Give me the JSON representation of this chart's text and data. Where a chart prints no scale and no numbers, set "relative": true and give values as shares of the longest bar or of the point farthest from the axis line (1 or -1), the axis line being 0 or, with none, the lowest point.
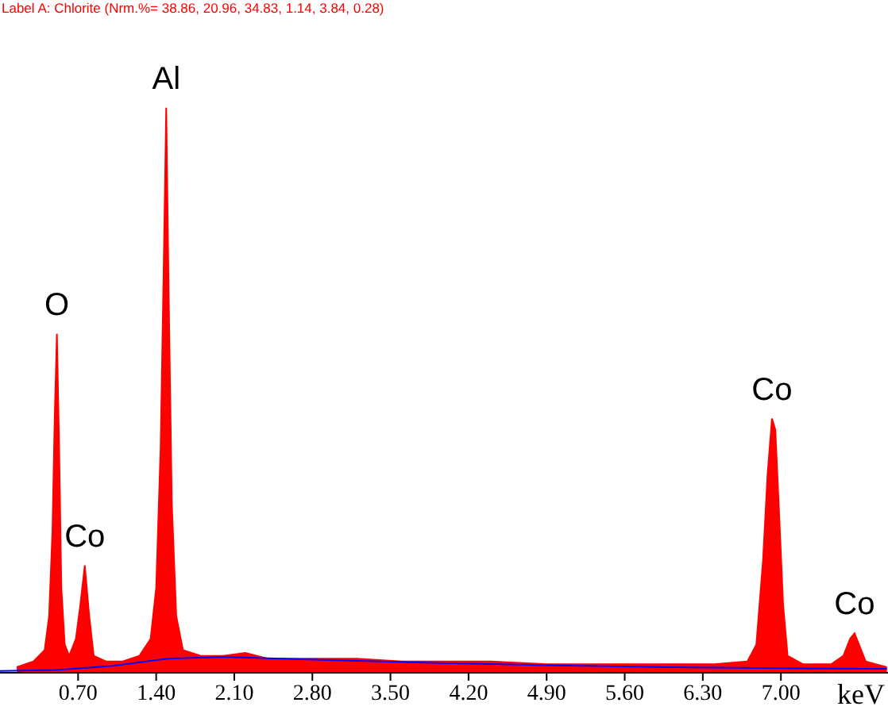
{
  "chart_data": {
    "type": "area",
    "title": "Label A: Chlorite (Nrm.%= 38.86, 20.96, 34.83, 1.14, 3.84, 0.28)",
    "xlabel": "keV",
    "relative": true,
    "xlim": [
      0,
      7.96
    ],
    "xticks": [
      {
        "value": 0.7,
        "label": "0.70"
      },
      {
        "value": 1.4,
        "label": "1.40"
      },
      {
        "value": 2.1,
        "label": "2.10"
      },
      {
        "value": 2.8,
        "label": "2.80"
      },
      {
        "value": 3.5,
        "label": "3.50"
      },
      {
        "value": 4.2,
        "label": "4.20"
      },
      {
        "value": 4.9,
        "label": "4.90"
      },
      {
        "value": 5.6,
        "label": "5.60"
      },
      {
        "value": 6.3,
        "label": "6.30"
      },
      {
        "value": 7.0,
        "label": "7.00"
      }
    ],
    "series": [
      {
        "color": "#ff0000",
        "x": [
          0.15,
          0.3,
          0.4,
          0.44,
          0.47,
          0.49,
          0.51,
          0.53,
          0.55,
          0.58,
          0.62,
          0.68,
          0.72,
          0.76,
          0.8,
          0.84,
          0.95,
          1.1,
          1.25,
          1.35,
          1.4,
          1.44,
          1.47,
          1.49,
          1.51,
          1.54,
          1.58,
          1.64,
          1.8,
          2.0,
          2.2,
          2.4,
          2.8,
          3.2,
          3.6,
          4.0,
          4.4,
          4.9,
          5.4,
          5.9,
          6.4,
          6.7,
          6.78,
          6.84,
          6.88,
          6.92,
          6.95,
          6.98,
          7.02,
          7.06,
          7.2,
          7.45,
          7.56,
          7.62,
          7.66,
          7.7,
          7.76,
          7.85,
          7.95
        ],
        "values": [
          0.01,
          0.02,
          0.04,
          0.1,
          0.25,
          0.45,
          0.6,
          0.4,
          0.15,
          0.05,
          0.03,
          0.06,
          0.12,
          0.19,
          0.1,
          0.03,
          0.02,
          0.02,
          0.03,
          0.06,
          0.15,
          0.4,
          0.75,
          1.0,
          0.7,
          0.3,
          0.1,
          0.04,
          0.03,
          0.03,
          0.035,
          0.025,
          0.025,
          0.025,
          0.02,
          0.02,
          0.02,
          0.015,
          0.015,
          0.015,
          0.015,
          0.02,
          0.05,
          0.2,
          0.35,
          0.45,
          0.43,
          0.3,
          0.12,
          0.03,
          0.015,
          0.015,
          0.03,
          0.06,
          0.07,
          0.05,
          0.02,
          0.015,
          0.01
        ]
      },
      {
        "type": "line",
        "color": "#0000ff",
        "x": [
          0,
          0.5,
          1.0,
          1.5,
          2.0,
          3.0,
          4.0,
          5.0,
          6.0,
          7.0,
          7.95
        ],
        "values": [
          0.003,
          0.005,
          0.012,
          0.025,
          0.028,
          0.022,
          0.017,
          0.013,
          0.01,
          0.008,
          0.007
        ]
      }
    ],
    "annotations": [
      {
        "text": "O",
        "x": 0.51,
        "y": 0.6
      },
      {
        "text": "Co",
        "x": 0.76,
        "y": 0.19
      },
      {
        "text": "Al",
        "x": 1.49,
        "y": 1.0
      },
      {
        "text": "Co",
        "x": 6.92,
        "y": 0.45
      },
      {
        "text": "Co",
        "x": 7.66,
        "y": 0.07
      }
    ]
  }
}
